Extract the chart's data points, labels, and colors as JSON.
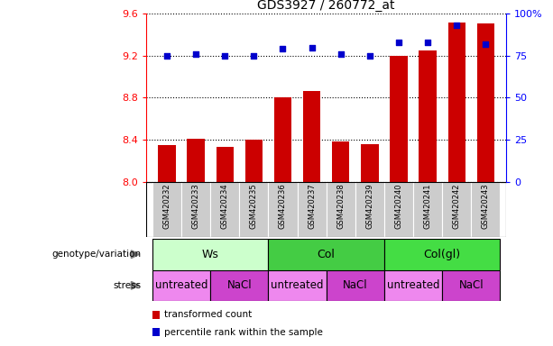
{
  "title": "GDS3927 / 260772_at",
  "samples": [
    "GSM420232",
    "GSM420233",
    "GSM420234",
    "GSM420235",
    "GSM420236",
    "GSM420237",
    "GSM420238",
    "GSM420239",
    "GSM420240",
    "GSM420241",
    "GSM420242",
    "GSM420243"
  ],
  "red_values": [
    8.35,
    8.41,
    8.33,
    8.4,
    8.8,
    8.86,
    8.38,
    8.36,
    9.2,
    9.25,
    9.52,
    9.51
  ],
  "blue_values": [
    75,
    76,
    75,
    75,
    79,
    80,
    76,
    75,
    83,
    83,
    93,
    82
  ],
  "ylim_left": [
    8.0,
    9.6
  ],
  "ylim_right": [
    0,
    100
  ],
  "yticks_left": [
    8.0,
    8.4,
    8.8,
    9.2,
    9.6
  ],
  "yticks_right": [
    0,
    25,
    50,
    75,
    100
  ],
  "ytick_labels_right": [
    "0",
    "25",
    "50",
    "75",
    "100%"
  ],
  "bar_color": "#cc0000",
  "dot_color": "#0000cc",
  "genotype_groups": [
    {
      "label": "Ws",
      "start": 0,
      "end": 3,
      "color": "#ccffcc"
    },
    {
      "label": "Col",
      "start": 4,
      "end": 7,
      "color": "#44cc44"
    },
    {
      "label": "Col(gl)",
      "start": 8,
      "end": 11,
      "color": "#44dd44"
    }
  ],
  "stress_groups": [
    {
      "label": "untreated",
      "start": 0,
      "end": 1,
      "color": "#ee88ee"
    },
    {
      "label": "NaCl",
      "start": 2,
      "end": 3,
      "color": "#cc44cc"
    },
    {
      "label": "untreated",
      "start": 4,
      "end": 5,
      "color": "#ee88ee"
    },
    {
      "label": "NaCl",
      "start": 6,
      "end": 7,
      "color": "#cc44cc"
    },
    {
      "label": "untreated",
      "start": 8,
      "end": 9,
      "color": "#ee88ee"
    },
    {
      "label": "NaCl",
      "start": 10,
      "end": 11,
      "color": "#cc44cc"
    }
  ],
  "legend_red_label": "transformed count",
  "legend_blue_label": "percentile rank within the sample",
  "genotype_label": "genotype/variation",
  "stress_label": "stress",
  "dotted_line_color": "#000000",
  "background_color": "#ffffff",
  "sample_bg_color": "#cccccc"
}
